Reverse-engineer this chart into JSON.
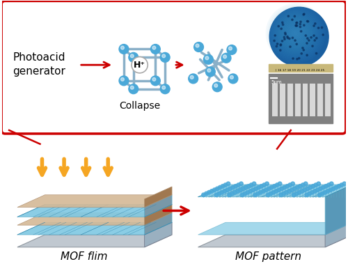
{
  "bg_color": "#ffffff",
  "fig_width": 5.0,
  "fig_height": 3.79,
  "text_photoacid": "Photoacid\ngenerator",
  "text_collapse": "Collapse",
  "text_mof_film": "MOF flim",
  "text_mof_pattern": "MOF pattern",
  "text_hplus": "H⁺",
  "text_scale": "5μm",
  "red_box_color": "#cc0000",
  "yellow_arrow_color": "#f5a623",
  "blue_node_color": "#4aa8d8",
  "rod_color": "#8ab0c8",
  "mof_blue": "#7ec8e3",
  "tan_color": "#d4b896"
}
